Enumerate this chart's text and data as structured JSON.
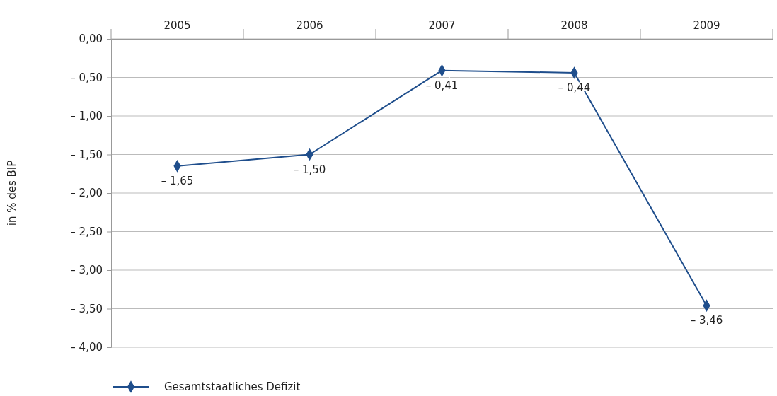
{
  "chart_data": {
    "type": "line",
    "ylabel": "in % des BIP",
    "categories": [
      "2005",
      "2006",
      "2007",
      "2008",
      "2009"
    ],
    "series": [
      {
        "name": "Gesamtstaatliches Defizit",
        "color": "#1f4e8c",
        "values": [
          -1.65,
          -1.5,
          -0.41,
          -0.44,
          -3.46
        ],
        "value_labels": [
          "– 1,65",
          "– 1,50",
          "– 0,41",
          "– 0,44",
          "– 3,46"
        ]
      }
    ],
    "ylim": [
      -4,
      0
    ],
    "yticks": [
      {
        "value": 0,
        "label": "0,00"
      },
      {
        "value": -0.5,
        "label": "– 0,50"
      },
      {
        "value": -1,
        "label": "– 1,00"
      },
      {
        "value": -1.5,
        "label": "– 1,50"
      },
      {
        "value": -2,
        "label": "– 2,00"
      },
      {
        "value": -2.5,
        "label": "– 2,50"
      },
      {
        "value": -3,
        "label": "– 3,00"
      },
      {
        "value": -3.5,
        "label": "– 3,50"
      },
      {
        "value": -4,
        "label": "– 4,00"
      }
    ],
    "grid": "y",
    "legend": "bottom left",
    "marker": "diamond",
    "line_style": "solid"
  }
}
